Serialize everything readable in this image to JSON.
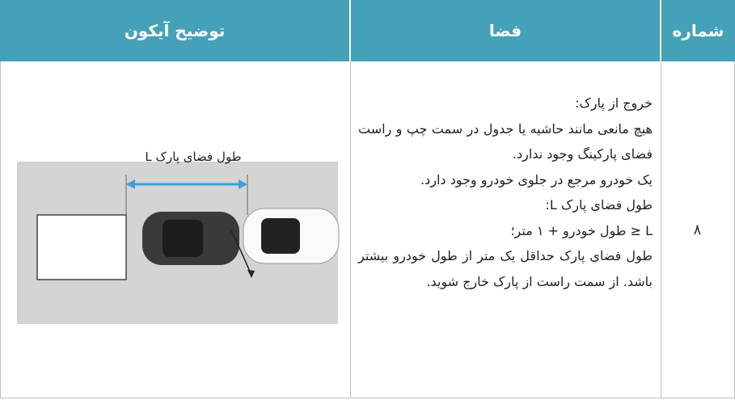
{
  "table": {
    "headers": [
      "شماره",
      "فضا",
      "توضیح آیکون"
    ],
    "rows": [
      {
        "number": "۸",
        "space": [
          "خروج از پارک:",
          "هیچ مانعی مانند حاشیه یا جدول در سمت چپ و راست فضای پارکینگ وجود ندارد.",
          "یک خودرو مرجع در جلوی خودرو وجود دارد.",
          "طول فضای پارک L:",
          "L ≤ طول خودرو + ۱ متر؛",
          "طول فضای پارک حداقل یک متر از طول خودرو بیشتر باشد. از سمت راست از پارک خارج شوید."
        ],
        "icon_caption": "طول فضای پارک L"
      }
    ]
  }
}
